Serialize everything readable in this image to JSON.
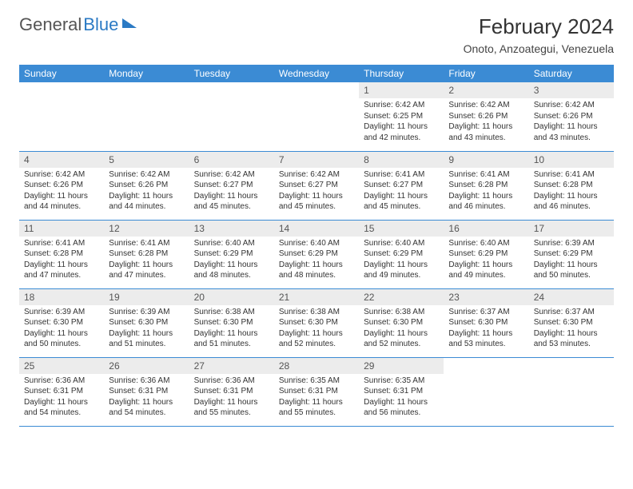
{
  "brand": {
    "part1": "General",
    "part2": "Blue"
  },
  "title": "February 2024",
  "location": "Onoto, Anzoategui, Venezuela",
  "colors": {
    "header_bg": "#3b8bd4",
    "header_text": "#ffffff",
    "daynum_bg": "#ececec",
    "rule": "#3b8bd4",
    "brand_blue": "#2b7ac4"
  },
  "weekdays": [
    "Sunday",
    "Monday",
    "Tuesday",
    "Wednesday",
    "Thursday",
    "Friday",
    "Saturday"
  ],
  "cells": [
    null,
    null,
    null,
    null,
    {
      "n": "1",
      "sr": "6:42 AM",
      "ss": "6:25 PM",
      "dl": "11 hours and 42 minutes."
    },
    {
      "n": "2",
      "sr": "6:42 AM",
      "ss": "6:26 PM",
      "dl": "11 hours and 43 minutes."
    },
    {
      "n": "3",
      "sr": "6:42 AM",
      "ss": "6:26 PM",
      "dl": "11 hours and 43 minutes."
    },
    {
      "n": "4",
      "sr": "6:42 AM",
      "ss": "6:26 PM",
      "dl": "11 hours and 44 minutes."
    },
    {
      "n": "5",
      "sr": "6:42 AM",
      "ss": "6:26 PM",
      "dl": "11 hours and 44 minutes."
    },
    {
      "n": "6",
      "sr": "6:42 AM",
      "ss": "6:27 PM",
      "dl": "11 hours and 45 minutes."
    },
    {
      "n": "7",
      "sr": "6:42 AM",
      "ss": "6:27 PM",
      "dl": "11 hours and 45 minutes."
    },
    {
      "n": "8",
      "sr": "6:41 AM",
      "ss": "6:27 PM",
      "dl": "11 hours and 45 minutes."
    },
    {
      "n": "9",
      "sr": "6:41 AM",
      "ss": "6:28 PM",
      "dl": "11 hours and 46 minutes."
    },
    {
      "n": "10",
      "sr": "6:41 AM",
      "ss": "6:28 PM",
      "dl": "11 hours and 46 minutes."
    },
    {
      "n": "11",
      "sr": "6:41 AM",
      "ss": "6:28 PM",
      "dl": "11 hours and 47 minutes."
    },
    {
      "n": "12",
      "sr": "6:41 AM",
      "ss": "6:28 PM",
      "dl": "11 hours and 47 minutes."
    },
    {
      "n": "13",
      "sr": "6:40 AM",
      "ss": "6:29 PM",
      "dl": "11 hours and 48 minutes."
    },
    {
      "n": "14",
      "sr": "6:40 AM",
      "ss": "6:29 PM",
      "dl": "11 hours and 48 minutes."
    },
    {
      "n": "15",
      "sr": "6:40 AM",
      "ss": "6:29 PM",
      "dl": "11 hours and 49 minutes."
    },
    {
      "n": "16",
      "sr": "6:40 AM",
      "ss": "6:29 PM",
      "dl": "11 hours and 49 minutes."
    },
    {
      "n": "17",
      "sr": "6:39 AM",
      "ss": "6:29 PM",
      "dl": "11 hours and 50 minutes."
    },
    {
      "n": "18",
      "sr": "6:39 AM",
      "ss": "6:30 PM",
      "dl": "11 hours and 50 minutes."
    },
    {
      "n": "19",
      "sr": "6:39 AM",
      "ss": "6:30 PM",
      "dl": "11 hours and 51 minutes."
    },
    {
      "n": "20",
      "sr": "6:38 AM",
      "ss": "6:30 PM",
      "dl": "11 hours and 51 minutes."
    },
    {
      "n": "21",
      "sr": "6:38 AM",
      "ss": "6:30 PM",
      "dl": "11 hours and 52 minutes."
    },
    {
      "n": "22",
      "sr": "6:38 AM",
      "ss": "6:30 PM",
      "dl": "11 hours and 52 minutes."
    },
    {
      "n": "23",
      "sr": "6:37 AM",
      "ss": "6:30 PM",
      "dl": "11 hours and 53 minutes."
    },
    {
      "n": "24",
      "sr": "6:37 AM",
      "ss": "6:30 PM",
      "dl": "11 hours and 53 minutes."
    },
    {
      "n": "25",
      "sr": "6:36 AM",
      "ss": "6:31 PM",
      "dl": "11 hours and 54 minutes."
    },
    {
      "n": "26",
      "sr": "6:36 AM",
      "ss": "6:31 PM",
      "dl": "11 hours and 54 minutes."
    },
    {
      "n": "27",
      "sr": "6:36 AM",
      "ss": "6:31 PM",
      "dl": "11 hours and 55 minutes."
    },
    {
      "n": "28",
      "sr": "6:35 AM",
      "ss": "6:31 PM",
      "dl": "11 hours and 55 minutes."
    },
    {
      "n": "29",
      "sr": "6:35 AM",
      "ss": "6:31 PM",
      "dl": "11 hours and 56 minutes."
    },
    null,
    null
  ],
  "labels": {
    "sunrise": "Sunrise:",
    "sunset": "Sunset:",
    "daylight": "Daylight:"
  }
}
